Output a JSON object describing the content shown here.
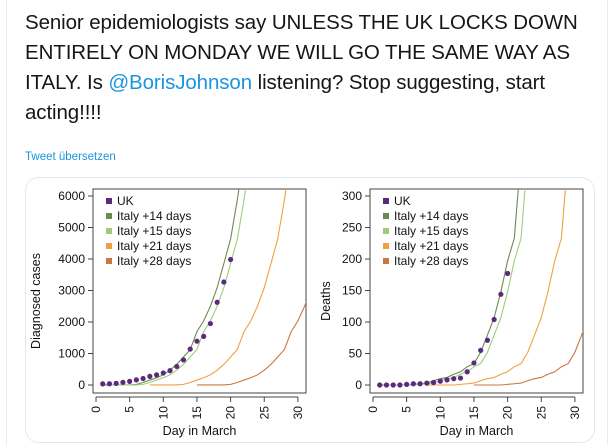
{
  "tweet": {
    "text_before": "Senior epidemiologists say UNLESS THE UK LOCKS DOWN ENTIRELY ON MONDAY WE WILL GO THE SAME WAY AS ITALY. Is ",
    "mention": "@BorisJohnson",
    "text_after": " listening? Stop suggesting, start acting!!!!",
    "translate_label": "Tweet übersetzen"
  },
  "colors": {
    "uk": "#5b2a7e",
    "italy14": "#6f8a4f",
    "italy15": "#9fcc7a",
    "italy21": "#f0a040",
    "italy28": "#c87840",
    "link": "#1b95e0"
  },
  "chart_data": [
    {
      "type": "line",
      "title": "",
      "xlabel": "Day in March",
      "ylabel": "Diagnosed cases",
      "xlim": [
        0,
        31
      ],
      "ylim": [
        0,
        6000
      ],
      "xticks": [
        0,
        5,
        10,
        15,
        20,
        25,
        30
      ],
      "yticks": [
        0,
        1000,
        2000,
        3000,
        4000,
        5000,
        6000
      ],
      "legend_position": "top-left",
      "series": [
        {
          "name": "UK",
          "kind": "points",
          "color_key": "uk",
          "x": [
            1,
            2,
            3,
            4,
            5,
            6,
            7,
            8,
            9,
            10,
            11,
            12,
            13,
            14,
            15,
            16,
            17,
            18,
            19,
            20
          ],
          "y": [
            36,
            40,
            51,
            85,
            115,
            163,
            206,
            273,
            321,
            382,
            456,
            590,
            798,
            1140,
            1391,
            1543,
            1950,
            2626,
            3269,
            3983
          ]
        },
        {
          "name": "Italy +14 days",
          "kind": "line",
          "color_key": "italy14",
          "shift": 14
        },
        {
          "name": "Italy +15 days",
          "kind": "line",
          "color_key": "italy15",
          "shift": 15
        },
        {
          "name": "Italy +21 days",
          "kind": "line",
          "color_key": "italy21",
          "shift": 21
        },
        {
          "name": "Italy +28 days",
          "kind": "line",
          "color_key": "italy28",
          "shift": 28
        }
      ],
      "italy_base": {
        "march_day": [
          -13,
          -12,
          -11,
          -10,
          -9,
          -8,
          -7,
          -6,
          -5,
          -4,
          -3,
          -2,
          -1,
          0,
          1,
          2,
          3,
          4,
          5,
          6,
          7,
          8
        ],
        "values": [
          3,
          3,
          3,
          3,
          3,
          20,
          79,
          157,
          229,
          323,
          470,
          655,
          889,
          1128,
          1694,
          2036,
          2502,
          3089,
          3858,
          4636,
          5883,
          7375
        ]
      }
    },
    {
      "type": "line",
      "title": "",
      "xlabel": "Day in March",
      "ylabel": "Deaths",
      "xlim": [
        0,
        31
      ],
      "ylim": [
        0,
        300
      ],
      "xticks": [
        0,
        5,
        10,
        15,
        20,
        25,
        30
      ],
      "yticks": [
        0,
        50,
        100,
        150,
        200,
        250,
        300
      ],
      "legend_position": "top-left",
      "series": [
        {
          "name": "UK",
          "kind": "points",
          "color_key": "uk",
          "x": [
            1,
            2,
            3,
            4,
            5,
            6,
            7,
            8,
            9,
            10,
            11,
            12,
            13,
            14,
            15,
            16,
            17,
            18,
            19,
            20
          ],
          "y": [
            0,
            0,
            0,
            0,
            1,
            2,
            2,
            3,
            4,
            6,
            8,
            10,
            11,
            21,
            35,
            55,
            71,
            104,
            144,
            177
          ]
        },
        {
          "name": "Italy +14 days",
          "kind": "line",
          "color_key": "italy14",
          "shift": 14
        },
        {
          "name": "Italy +15 days",
          "kind": "line",
          "color_key": "italy15",
          "shift": 15
        },
        {
          "name": "Italy +21 days",
          "kind": "line",
          "color_key": "italy21",
          "shift": 21
        },
        {
          "name": "Italy +28 days",
          "kind": "line",
          "color_key": "italy28",
          "shift": 28
        }
      ],
      "italy_base": {
        "march_day": [
          -13,
          -12,
          -11,
          -10,
          -9,
          -8,
          -7,
          -6,
          -5,
          -4,
          -3,
          -2,
          -1,
          0,
          1,
          2,
          3,
          4,
          5,
          6,
          7,
          8,
          9
        ],
        "values": [
          0,
          0,
          0,
          0,
          0,
          1,
          2,
          3,
          7,
          10,
          12,
          17,
          21,
          29,
          34,
          52,
          79,
          107,
          148,
          197,
          233,
          366,
          463
        ]
      }
    }
  ]
}
